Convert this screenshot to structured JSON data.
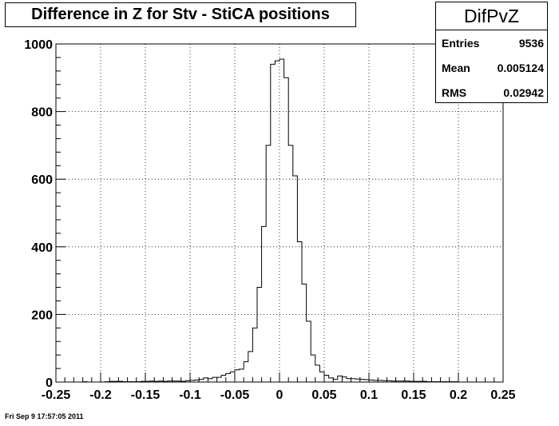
{
  "title": "Difference in Z for Stv - StiCA positions",
  "stats": {
    "name": "DifPvZ",
    "entries_label": "Entries",
    "entries_value": "9536",
    "mean_label": "Mean",
    "mean_value": "0.005124",
    "rms_label": "RMS",
    "rms_value": "0.02942"
  },
  "footer": "Fri Sep  9 17:57:05 2011",
  "colors": {
    "line": "#000000",
    "grid": "#000000",
    "background": "#ffffff"
  },
  "chart_data": {
    "type": "histogram",
    "title": "Difference in Z for Stv - StiCA positions",
    "xlabel": "",
    "ylabel": "",
    "xlim": [
      -0.25,
      0.25
    ],
    "ylim": [
      0,
      1000
    ],
    "grid": true,
    "bin_width": 0.005,
    "x_ticks": [
      "-0.25",
      "-0.2",
      "-0.15",
      "-0.1",
      "-0.05",
      "0",
      "0.05",
      "0.1",
      "0.15",
      "0.2",
      "0.25"
    ],
    "y_ticks": [
      "0",
      "200",
      "400",
      "600",
      "800",
      "1000"
    ],
    "bins_low_edge": [
      -0.25,
      -0.245,
      -0.24,
      -0.235,
      -0.23,
      -0.225,
      -0.22,
      -0.215,
      -0.21,
      -0.205,
      -0.2,
      -0.195,
      -0.19,
      -0.185,
      -0.18,
      -0.175,
      -0.17,
      -0.165,
      -0.16,
      -0.155,
      -0.15,
      -0.145,
      -0.14,
      -0.135,
      -0.13,
      -0.125,
      -0.12,
      -0.115,
      -0.11,
      -0.105,
      -0.1,
      -0.095,
      -0.09,
      -0.085,
      -0.08,
      -0.075,
      -0.07,
      -0.065,
      -0.06,
      -0.055,
      -0.05,
      -0.045,
      -0.04,
      -0.035,
      -0.03,
      -0.025,
      -0.02,
      -0.015,
      -0.01,
      -0.005,
      0,
      0.005,
      0.01,
      0.015,
      0.02,
      0.025,
      0.03,
      0.035,
      0.04,
      0.045,
      0.05,
      0.055,
      0.06,
      0.065,
      0.07,
      0.075,
      0.08,
      0.085,
      0.09,
      0.095,
      0.1,
      0.105,
      0.11,
      0.115,
      0.12,
      0.125,
      0.13,
      0.135,
      0.14,
      0.145,
      0.15,
      0.155,
      0.16,
      0.165,
      0.17,
      0.175,
      0.18,
      0.185,
      0.19,
      0.195,
      0.2,
      0.205,
      0.21,
      0.215,
      0.22,
      0.225,
      0.23,
      0.235,
      0.24,
      0.245
    ],
    "values": [
      0,
      0,
      0,
      0,
      0,
      0,
      1,
      0,
      0,
      0,
      0,
      1,
      2,
      2,
      2,
      1,
      1,
      1,
      1,
      2,
      2,
      3,
      2,
      3,
      2,
      3,
      3,
      3,
      2,
      4,
      5,
      6,
      8,
      12,
      10,
      14,
      14,
      20,
      25,
      30,
      36,
      38,
      60,
      90,
      160,
      280,
      460,
      700,
      940,
      950,
      955,
      900,
      700,
      610,
      415,
      290,
      180,
      80,
      50,
      30,
      20,
      12,
      8,
      18,
      15,
      10,
      10,
      9,
      8,
      7,
      6,
      5,
      5,
      4,
      4,
      3,
      3,
      3,
      3,
      2,
      2,
      2,
      2,
      1,
      1,
      1,
      1,
      1,
      1,
      1,
      0,
      0,
      0,
      0,
      0,
      0,
      0,
      0,
      0,
      0
    ]
  }
}
